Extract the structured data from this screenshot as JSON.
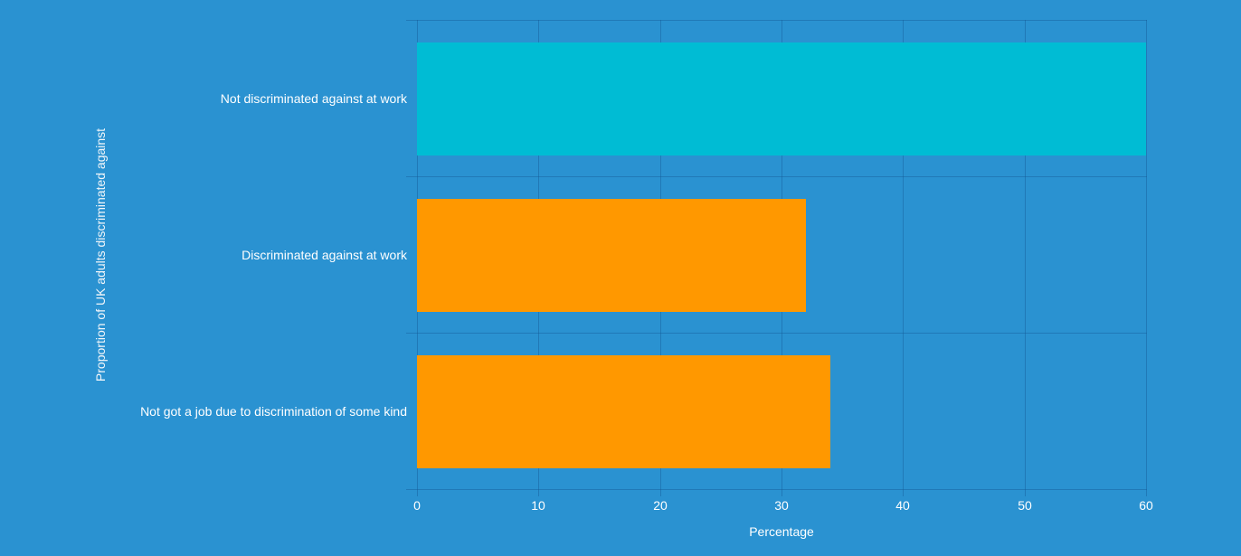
{
  "chart_data": {
    "type": "bar",
    "orientation": "horizontal",
    "title": "",
    "xlabel": "Percentage",
    "ylabel": "Proportion of UK adults discriminated against",
    "categories": [
      "Not discriminated against at work",
      "Discriminated against at work",
      "Not got a job due to discrimination of some kind"
    ],
    "values": [
      60,
      32,
      34
    ],
    "colors": [
      "#00bcd4",
      "#ff9800",
      "#ff9800"
    ],
    "xlim": [
      0,
      60
    ],
    "xticks": [
      "0",
      "10",
      "20",
      "30",
      "40",
      "50",
      "60"
    ],
    "grid": true,
    "legend": "none"
  },
  "theme": {
    "background": "#2a92d1",
    "grid_color": "#2382c0"
  }
}
